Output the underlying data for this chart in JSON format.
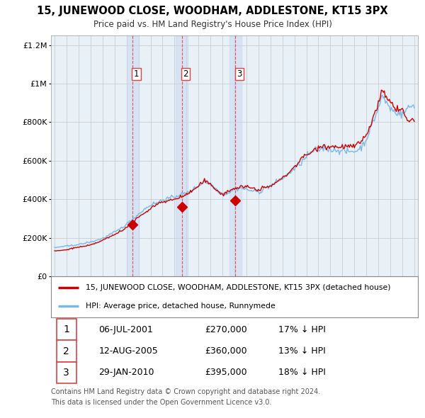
{
  "title": "15, JUNEWOOD CLOSE, WOODHAM, ADDLESTONE, KT15 3PX",
  "subtitle": "Price paid vs. HM Land Registry's House Price Index (HPI)",
  "hpi_color": "#7ab8e8",
  "price_color": "#cc0000",
  "vline_color": "#dd4444",
  "shade_color": "#ddeeff",
  "transactions": [
    {
      "label": "1",
      "date": "06-JUL-2001",
      "price": 270000,
      "hpi_diff": "17% ↓ HPI",
      "year": 2001.5
    },
    {
      "label": "2",
      "date": "12-AUG-2005",
      "price": 360000,
      "hpi_diff": "13% ↓ HPI",
      "year": 2005.6
    },
    {
      "label": "3",
      "date": "29-JAN-2010",
      "price": 395000,
      "hpi_diff": "18% ↓ HPI",
      "year": 2010.07
    }
  ],
  "legend_property_label": "15, JUNEWOOD CLOSE, WOODHAM, ADDLESTONE, KT15 3PX (detached house)",
  "legend_hpi_label": "HPI: Average price, detached house, Runnymede",
  "footer1": "Contains HM Land Registry data © Crown copyright and database right 2024.",
  "footer2": "This data is licensed under the Open Government Licence v3.0.",
  "background_color": "#e8f0f8",
  "ylim": [
    0,
    1250000
  ],
  "xlim": [
    1994.7,
    2025.3
  ]
}
